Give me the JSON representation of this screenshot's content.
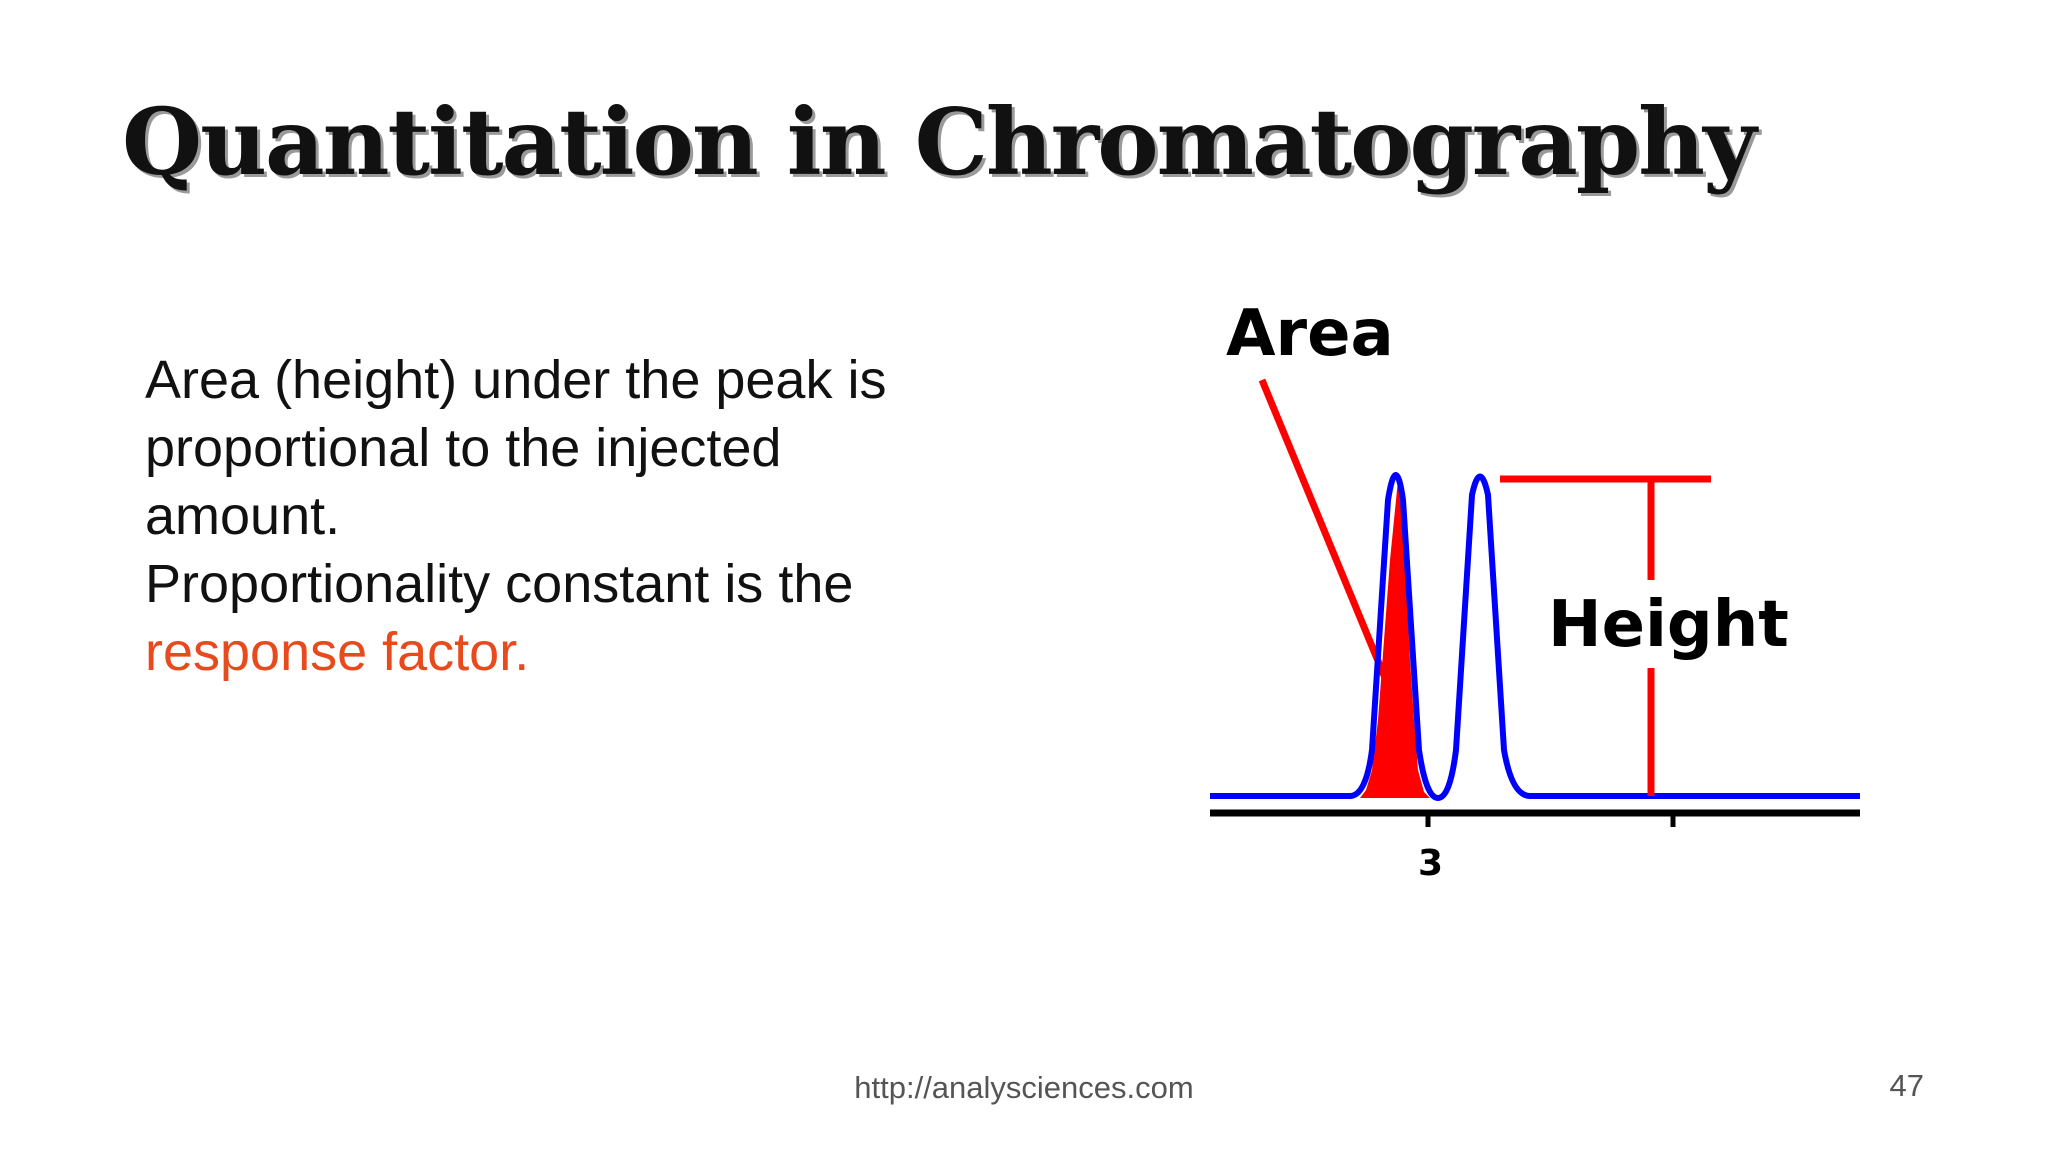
{
  "slide": {
    "title": "Quantitation in Chromatography",
    "body": {
      "line1": "Area (height) under the peak is",
      "line2": "proportional to the injected",
      "line3": "amount.",
      "line4": "Proportionality constant is the",
      "highlight": "response factor."
    },
    "figure": {
      "area_label": "Area",
      "height_label": "Height",
      "tick_label": "3",
      "colors": {
        "trace": "#0000ff",
        "annotation": "#ff0000",
        "axis": "#000000"
      }
    },
    "footer": {
      "url": "http://analysciences.com",
      "page_number": "47"
    },
    "colors": {
      "highlight": "#e8491d"
    }
  }
}
